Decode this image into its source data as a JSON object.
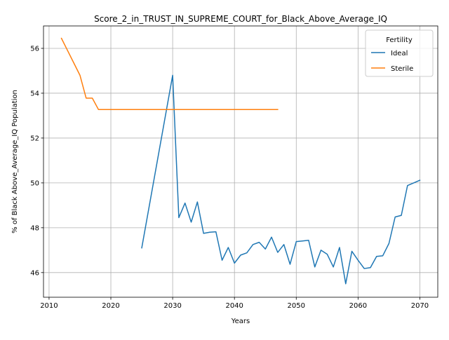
{
  "chart_data": {
    "type": "line",
    "title": "Score_2_in_TRUST_IN_SUPREME_COURT_for_Black_Above_Average_IQ",
    "xlabel": "Years",
    "ylabel": "% of Black Above_Average_IQ Population",
    "xlim": [
      2009.1,
      2072.9
    ],
    "ylim": [
      44.9,
      57.0
    ],
    "x_ticks": [
      2010,
      2020,
      2030,
      2040,
      2050,
      2060,
      2070
    ],
    "y_ticks": [
      46,
      48,
      50,
      52,
      54,
      56
    ],
    "grid": true,
    "legend": {
      "title": "Fertility",
      "position": "top-right"
    },
    "series": [
      {
        "name": "Ideal",
        "color": "#1f77b4",
        "x": [
          2025,
          2030,
          2031,
          2032,
          2033,
          2034,
          2035,
          2036,
          2037,
          2038,
          2039,
          2040,
          2041,
          2042,
          2043,
          2044,
          2045,
          2046,
          2047,
          2048,
          2049,
          2050,
          2051,
          2052,
          2053,
          2054,
          2055,
          2056,
          2057,
          2058,
          2059,
          2060,
          2061,
          2062,
          2063,
          2064,
          2065,
          2066,
          2067,
          2068,
          2069,
          2070
        ],
        "values": [
          47.1,
          54.8,
          48.45,
          49.1,
          48.25,
          49.15,
          47.75,
          47.8,
          47.82,
          46.55,
          47.12,
          46.42,
          46.78,
          46.88,
          47.25,
          47.35,
          47.05,
          47.58,
          46.9,
          47.25,
          46.37,
          47.38,
          47.41,
          47.44,
          46.25,
          47.0,
          46.82,
          46.25,
          47.12,
          45.5,
          46.95,
          46.55,
          46.18,
          46.22,
          46.72,
          46.75,
          47.3,
          48.48,
          48.55,
          49.88,
          50.0,
          50.12
        ]
      },
      {
        "name": "Sterile",
        "color": "#ff7f0e",
        "x": [
          2012,
          2013,
          2014,
          2015,
          2016,
          2017,
          2018,
          2019,
          2020,
          2021,
          2022,
          2023,
          2024,
          2025,
          2026,
          2027,
          2028,
          2029,
          2030,
          2031,
          2032,
          2033,
          2034,
          2035,
          2036,
          2037,
          2038,
          2039,
          2040,
          2041,
          2042,
          2043,
          2044,
          2045,
          2046,
          2047
        ],
        "values": [
          56.45,
          55.9,
          55.35,
          54.8,
          53.78,
          53.78,
          53.27,
          53.27,
          53.27,
          53.27,
          53.27,
          53.27,
          53.27,
          53.27,
          53.27,
          53.27,
          53.27,
          53.27,
          53.27,
          53.27,
          53.27,
          53.27,
          53.27,
          53.27,
          53.27,
          53.27,
          53.27,
          53.27,
          53.27,
          53.27,
          53.27,
          53.27,
          53.27,
          53.27,
          53.27,
          53.27
        ]
      }
    ]
  }
}
